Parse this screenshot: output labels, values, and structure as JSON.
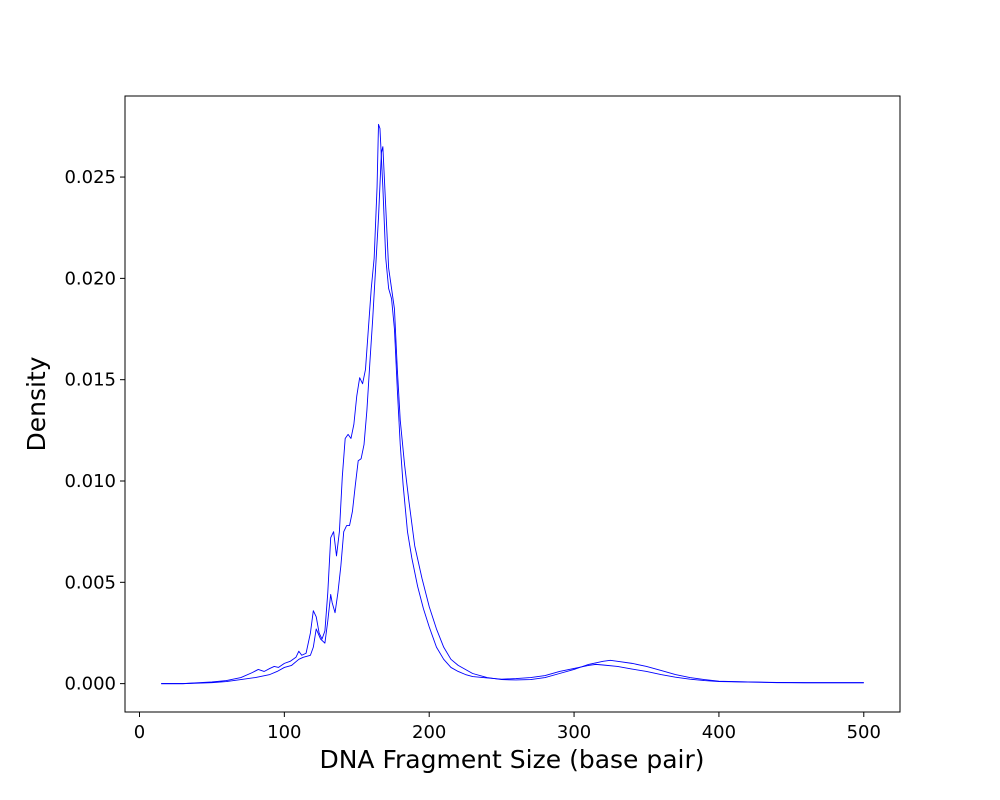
{
  "chart_data": {
    "type": "line",
    "title": "",
    "xlabel": "DNA Fragment Size (base pair)",
    "ylabel": "Density",
    "xlim": [
      -10,
      525
    ],
    "ylim": [
      -0.0014,
      0.029
    ],
    "xticks": [
      0,
      100,
      200,
      300,
      400,
      500
    ],
    "yticks": [
      0.0,
      0.005,
      0.01,
      0.015,
      0.02,
      0.025
    ],
    "xtick_labels": [
      "0",
      "100",
      "200",
      "300",
      "400",
      "500"
    ],
    "ytick_labels": [
      "0.000",
      "0.005",
      "0.010",
      "0.015",
      "0.020",
      "0.025"
    ],
    "grid": false,
    "legend": null,
    "line_color": "#0000ff",
    "series": [
      {
        "x": [
          15,
          30,
          50,
          60,
          70,
          78,
          82,
          86,
          90,
          93,
          96,
          100,
          104,
          108,
          110,
          112,
          115,
          118,
          120,
          122,
          124,
          126,
          128,
          130,
          132,
          134,
          136,
          138,
          140,
          142,
          144,
          146,
          148,
          150,
          152,
          154,
          156,
          158,
          160,
          162,
          164,
          165,
          166,
          168,
          170,
          172,
          174,
          176,
          178,
          180,
          182,
          185,
          188,
          192,
          196,
          200,
          205,
          210,
          215,
          220,
          225,
          230,
          240,
          250,
          260,
          270,
          280,
          290,
          300,
          310,
          315,
          320,
          330,
          340,
          350,
          360,
          370,
          380,
          390,
          400,
          420,
          440,
          460,
          480,
          500
        ],
        "y": [
          0.0,
          0.0,
          8e-05,
          0.00015,
          0.0003,
          0.00055,
          0.0007,
          0.0006,
          0.00075,
          0.00085,
          0.0008,
          0.001,
          0.0011,
          0.0013,
          0.0016,
          0.0014,
          0.0015,
          0.0025,
          0.0036,
          0.0033,
          0.0025,
          0.0022,
          0.0026,
          0.0045,
          0.0072,
          0.0075,
          0.0063,
          0.0075,
          0.0102,
          0.0121,
          0.0123,
          0.0121,
          0.0128,
          0.0142,
          0.0151,
          0.0148,
          0.0155,
          0.0175,
          0.0195,
          0.021,
          0.0245,
          0.0276,
          0.0274,
          0.0245,
          0.021,
          0.0195,
          0.019,
          0.0175,
          0.0145,
          0.0118,
          0.0098,
          0.0075,
          0.0062,
          0.0048,
          0.0037,
          0.0028,
          0.0018,
          0.0012,
          0.0008,
          0.0006,
          0.00045,
          0.00035,
          0.00028,
          0.00022,
          0.00025,
          0.0003,
          0.0004,
          0.0006,
          0.00075,
          0.0009,
          0.00095,
          0.00092,
          0.00085,
          0.00072,
          0.0006,
          0.00045,
          0.00032,
          0.00022,
          0.00015,
          0.0001,
          8e-05,
          6e-05,
          5e-05,
          5e-05,
          5e-05
        ]
      },
      {
        "x": [
          15,
          30,
          50,
          60,
          70,
          80,
          90,
          95,
          100,
          105,
          110,
          113,
          118,
          120,
          122,
          125,
          128,
          130,
          132,
          133,
          135,
          137,
          139,
          141,
          143,
          145,
          147,
          149,
          151,
          153,
          155,
          157,
          159,
          161,
          163,
          165,
          167,
          168,
          170,
          172,
          174,
          176,
          178,
          180,
          183,
          186,
          190,
          195,
          200,
          205,
          210,
          215,
          220,
          230,
          240,
          250,
          260,
          270,
          280,
          290,
          300,
          310,
          320,
          325,
          330,
          340,
          350,
          360,
          370,
          380,
          390,
          400,
          420,
          440,
          460,
          480,
          500
        ],
        "y": [
          0.0,
          0.0,
          5e-05,
          0.0001,
          0.0002,
          0.0003,
          0.00045,
          0.0006,
          0.0008,
          0.0009,
          0.0012,
          0.0013,
          0.0014,
          0.0018,
          0.0027,
          0.0022,
          0.002,
          0.0031,
          0.0044,
          0.004,
          0.0035,
          0.0045,
          0.0058,
          0.0075,
          0.0078,
          0.0078,
          0.0085,
          0.0098,
          0.011,
          0.0111,
          0.0118,
          0.0135,
          0.0158,
          0.018,
          0.0205,
          0.023,
          0.0262,
          0.0265,
          0.0235,
          0.0205,
          0.0195,
          0.0185,
          0.0155,
          0.013,
          0.0108,
          0.009,
          0.0068,
          0.0052,
          0.0038,
          0.0027,
          0.0018,
          0.0012,
          0.0009,
          0.0005,
          0.0003,
          0.0002,
          0.00018,
          0.0002,
          0.0003,
          0.0005,
          0.0007,
          0.00095,
          0.0011,
          0.00115,
          0.0011,
          0.001,
          0.00085,
          0.00065,
          0.00045,
          0.0003,
          0.0002,
          0.00012,
          8e-05,
          5e-05,
          4e-05,
          4e-05,
          4e-05
        ]
      }
    ]
  }
}
